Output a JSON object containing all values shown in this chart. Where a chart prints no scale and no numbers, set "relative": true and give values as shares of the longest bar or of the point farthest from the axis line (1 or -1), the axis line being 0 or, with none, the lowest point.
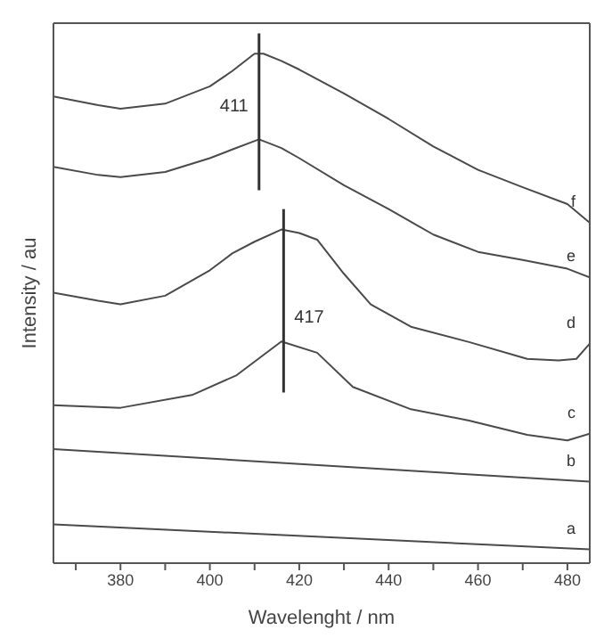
{
  "chart_data": {
    "type": "line",
    "relative": true,
    "xlabel": "Wavelenght / nm",
    "ylabel": "Intensity / au",
    "xlim": [
      365,
      485
    ],
    "xticks": [
      {
        "value": 370,
        "label": null
      },
      380,
      {
        "value": 390,
        "label": null
      },
      400,
      {
        "value": 410,
        "label": null
      },
      420,
      {
        "value": 430,
        "label": null
      },
      440,
      {
        "value": 450,
        "label": null
      },
      460,
      {
        "value": 470,
        "label": null
      },
      480
    ],
    "marker": "none",
    "line_style": "solid",
    "legend": false,
    "grid": false,
    "series": [
      {
        "name": "a",
        "color": "#4a4a4a",
        "x": [
          365,
          485
        ],
        "values": [
          0.076,
          0.027
        ]
      },
      {
        "name": "b",
        "color": "#4a4a4a",
        "x": [
          365,
          485
        ],
        "values": [
          0.224,
          0.16
        ]
      },
      {
        "name": "c",
        "color": "#4a4a4a",
        "x": [
          365,
          380,
          396,
          406,
          416,
          424,
          432,
          445,
          458,
          471,
          480,
          485
        ],
        "values": [
          0.31,
          0.305,
          0.33,
          0.369,
          0.435,
          0.413,
          0.346,
          0.302,
          0.28,
          0.252,
          0.241,
          0.254
        ]
      },
      {
        "name": "d",
        "color": "#4a4a4a",
        "x": [
          365,
          375,
          380,
          390,
          400,
          405,
          410,
          416,
          420,
          424,
          430,
          436,
          445,
          458,
          471,
          478,
          482,
          485
        ],
        "values": [
          0.531,
          0.515,
          0.508,
          0.525,
          0.575,
          0.608,
          0.631,
          0.655,
          0.648,
          0.635,
          0.568,
          0.508,
          0.464,
          0.434,
          0.401,
          0.398,
          0.401,
          0.431
        ]
      },
      {
        "name": "e",
        "color": "#4a4a4a",
        "x": [
          365,
          375,
          380,
          390,
          400,
          405,
          411,
          416,
          420,
          430,
          440,
          450,
          460,
          470,
          480,
          485
        ],
        "values": [
          0.778,
          0.762,
          0.758,
          0.768,
          0.795,
          0.812,
          0.832,
          0.815,
          0.795,
          0.742,
          0.695,
          0.645,
          0.611,
          0.595,
          0.578,
          0.561
        ]
      },
      {
        "name": "f",
        "color": "#4a4a4a",
        "x": [
          365,
          375,
          380,
          390,
          400,
          405,
          410,
          412,
          416,
          420,
          430,
          440,
          450,
          460,
          470,
          480,
          485
        ],
        "values": [
          0.916,
          0.899,
          0.892,
          0.902,
          0.936,
          0.966,
          1,
          1,
          0.986,
          0.969,
          0.922,
          0.872,
          0.818,
          0.772,
          0.738,
          0.705,
          0.668
        ]
      }
    ],
    "ref_lines": [
      {
        "axis": "x",
        "value": 411,
        "label": "411",
        "color": "#333333"
      },
      {
        "axis": "x",
        "value": 416.5,
        "label": "417",
        "color": "#333333"
      }
    ]
  }
}
